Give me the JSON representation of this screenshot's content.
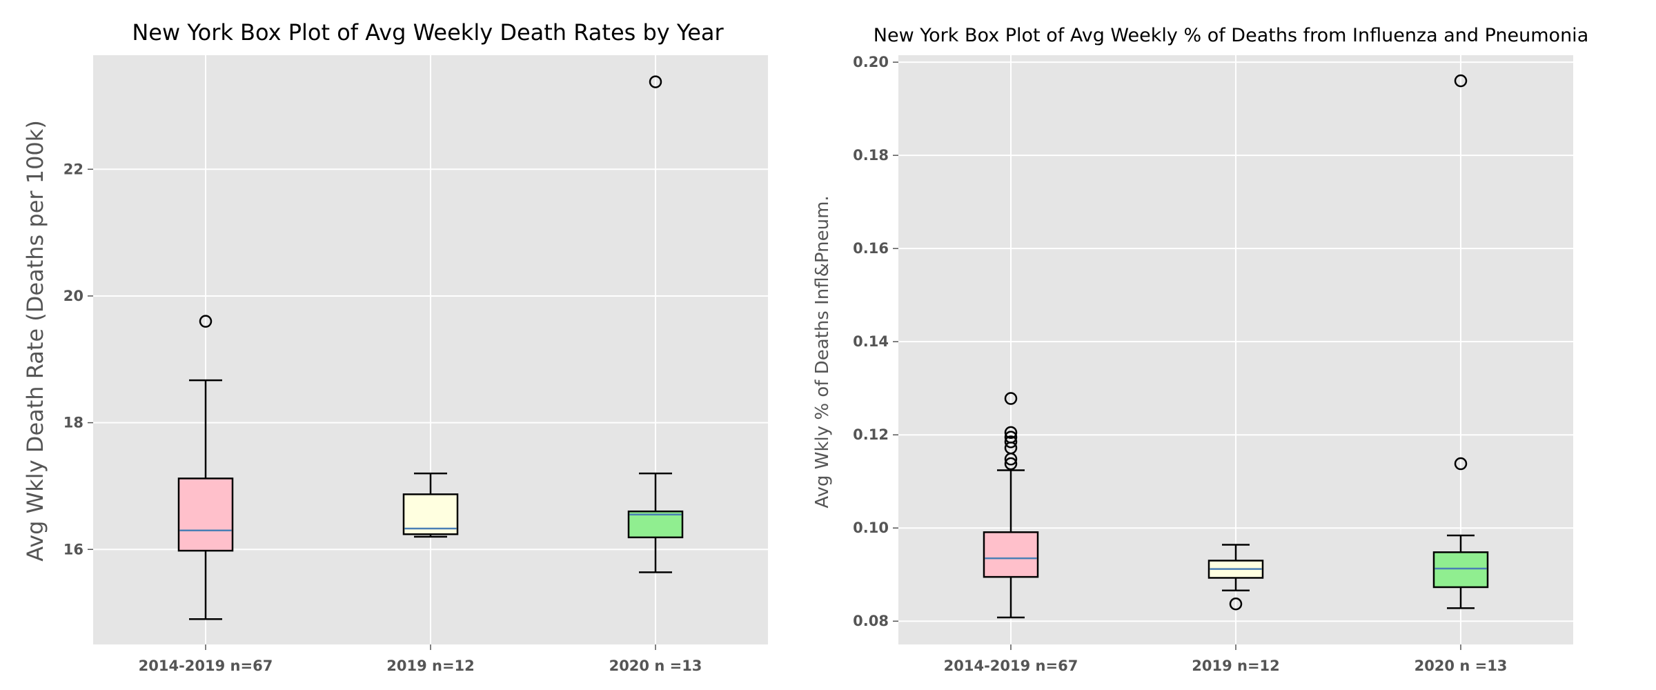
{
  "chart_data": [
    {
      "type": "box",
      "title": "New York Box Plot of Avg Weekly Death Rates by Year",
      "xlabel": "",
      "ylabel": "Avg Wkly Death Rate (Deaths per 100k)",
      "ylim": [
        14.5,
        23.8
      ],
      "yticks": [
        16,
        18,
        20,
        22
      ],
      "yticklabels": [
        "16",
        "18",
        "20",
        "22"
      ],
      "grid": true,
      "categories": [
        "2014-2019 n=67",
        "2019 n=12",
        "2020 n =13"
      ],
      "colors": [
        "#ffc0cb",
        "#ffffe0",
        "#90ee90"
      ],
      "median_color": "#4a7fb5",
      "boxes": [
        {
          "whislo": 14.9,
          "q1": 15.98,
          "med": 16.3,
          "q3": 17.12,
          "whishi": 18.67,
          "fliers": [
            19.6
          ]
        },
        {
          "whislo": 16.2,
          "q1": 16.24,
          "med": 16.33,
          "q3": 16.87,
          "whishi": 17.2,
          "fliers": []
        },
        {
          "whislo": 15.64,
          "q1": 16.19,
          "med": 16.55,
          "q3": 16.6,
          "whishi": 17.2,
          "fliers": [
            23.38
          ]
        }
      ]
    },
    {
      "type": "box",
      "title": "New York Box Plot of Avg Weekly % of Deaths from Influenza and Pneumonia",
      "xlabel": "",
      "ylabel": "Avg Wkly % of Deaths Infl&Pneum.",
      "ylim": [
        0.075,
        0.2015
      ],
      "yticks": [
        0.08,
        0.1,
        0.12,
        0.14,
        0.16,
        0.18,
        0.2
      ],
      "yticklabels": [
        "0.08",
        "0.10",
        "0.12",
        "0.14",
        "0.16",
        "0.18",
        "0.20"
      ],
      "grid": true,
      "categories": [
        "2014-2019 n=67",
        "2019 n=12",
        "2020 n =13"
      ],
      "colors": [
        "#ffc0cb",
        "#ffffe0",
        "#90ee90"
      ],
      "median_color": "#4a7fb5",
      "boxes": [
        {
          "whislo": 0.0808,
          "q1": 0.0895,
          "med": 0.0935,
          "q3": 0.0991,
          "whishi": 0.1124,
          "fliers": [
            0.1138,
            0.1148,
            0.1172,
            0.1185,
            0.1195,
            0.1205,
            0.1278
          ]
        },
        {
          "whislo": 0.0866,
          "q1": 0.0893,
          "med": 0.0912,
          "q3": 0.093,
          "whishi": 0.0964,
          "fliers": [
            0.0837
          ]
        },
        {
          "whislo": 0.0828,
          "q1": 0.0873,
          "med": 0.0913,
          "q3": 0.0948,
          "whishi": 0.0984,
          "fliers": [
            0.1138,
            0.196
          ]
        }
      ]
    }
  ]
}
